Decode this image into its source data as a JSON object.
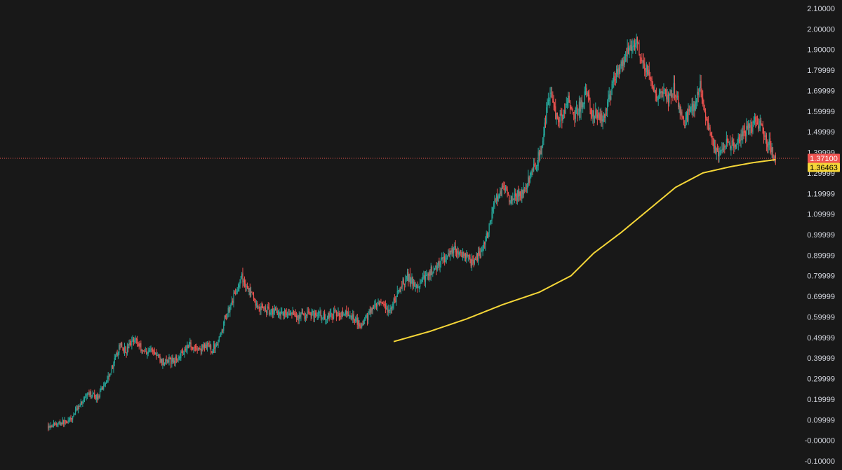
{
  "chart_data": {
    "type": "candlestick",
    "title": "",
    "xlabel": "",
    "ylabel": "",
    "ylim": [
      -0.1,
      2.1
    ],
    "grid": false,
    "background": "#181818",
    "colors": {
      "up": "#26a69a",
      "down": "#ef5350",
      "ma": "#f5d638",
      "axis_text": "#d1d4dc",
      "last_price_line": "#ef5350"
    },
    "y_ticks": [
      {
        "value": 2.1,
        "label": "2.10000"
      },
      {
        "value": 2.0,
        "label": "2.00000"
      },
      {
        "value": 1.9,
        "label": "1.90000"
      },
      {
        "value": 1.8,
        "label": "1.79999"
      },
      {
        "value": 1.7,
        "label": "1.69999"
      },
      {
        "value": 1.6,
        "label": "1.59999"
      },
      {
        "value": 1.5,
        "label": "1.49999"
      },
      {
        "value": 1.4,
        "label": "1.39999"
      },
      {
        "value": 1.3,
        "label": "1.29999"
      },
      {
        "value": 1.2,
        "label": "1.19999"
      },
      {
        "value": 1.1,
        "label": "1.09999"
      },
      {
        "value": 1.0,
        "label": "0.99999"
      },
      {
        "value": 0.9,
        "label": "0.89999"
      },
      {
        "value": 0.8,
        "label": "0.79999"
      },
      {
        "value": 0.7,
        "label": "0.69999"
      },
      {
        "value": 0.6,
        "label": "0.59999"
      },
      {
        "value": 0.5,
        "label": "0.49999"
      },
      {
        "value": 0.4,
        "label": "0.39999"
      },
      {
        "value": 0.3,
        "label": "0.29999"
      },
      {
        "value": 0.2,
        "label": "0.19999"
      },
      {
        "value": 0.1,
        "label": "0.09999"
      },
      {
        "value": 0.0,
        "label": "-0.00000"
      },
      {
        "value": -0.1,
        "label": "-0.10000"
      }
    ],
    "price_path": [
      [
        0,
        0.07
      ],
      [
        10,
        0.08
      ],
      [
        25,
        0.1
      ],
      [
        35,
        0.18
      ],
      [
        45,
        0.22
      ],
      [
        55,
        0.21
      ],
      [
        70,
        0.35
      ],
      [
        80,
        0.47
      ],
      [
        85,
        0.43
      ],
      [
        95,
        0.5
      ],
      [
        105,
        0.43
      ],
      [
        115,
        0.44
      ],
      [
        125,
        0.38
      ],
      [
        140,
        0.39
      ],
      [
        155,
        0.47
      ],
      [
        165,
        0.44
      ],
      [
        175,
        0.46
      ],
      [
        180,
        0.44
      ],
      [
        188,
        0.49
      ],
      [
        195,
        0.6
      ],
      [
        205,
        0.71
      ],
      [
        213,
        0.79
      ],
      [
        222,
        0.72
      ],
      [
        230,
        0.65
      ],
      [
        245,
        0.63
      ],
      [
        260,
        0.62
      ],
      [
        275,
        0.6
      ],
      [
        290,
        0.62
      ],
      [
        305,
        0.6
      ],
      [
        320,
        0.62
      ],
      [
        335,
        0.6
      ],
      [
        345,
        0.56
      ],
      [
        355,
        0.63
      ],
      [
        365,
        0.66
      ],
      [
        375,
        0.62
      ],
      [
        385,
        0.72
      ],
      [
        395,
        0.8
      ],
      [
        405,
        0.74
      ],
      [
        420,
        0.82
      ],
      [
        435,
        0.88
      ],
      [
        445,
        0.93
      ],
      [
        455,
        0.9
      ],
      [
        465,
        0.87
      ],
      [
        475,
        0.9
      ],
      [
        483,
        1.0
      ],
      [
        492,
        1.18
      ],
      [
        500,
        1.22
      ],
      [
        510,
        1.17
      ],
      [
        520,
        1.2
      ],
      [
        530,
        1.28
      ],
      [
        537,
        1.35
      ],
      [
        542,
        1.42
      ],
      [
        548,
        1.6
      ],
      [
        553,
        1.72
      ],
      [
        558,
        1.56
      ],
      [
        565,
        1.57
      ],
      [
        572,
        1.66
      ],
      [
        578,
        1.58
      ],
      [
        586,
        1.63
      ],
      [
        592,
        1.71
      ],
      [
        598,
        1.58
      ],
      [
        605,
        1.6
      ],
      [
        610,
        1.56
      ],
      [
        616,
        1.64
      ],
      [
        622,
        1.76
      ],
      [
        628,
        1.8
      ],
      [
        634,
        1.85
      ],
      [
        640,
        1.92
      ],
      [
        646,
        1.95
      ],
      [
        652,
        1.86
      ],
      [
        658,
        1.8
      ],
      [
        664,
        1.75
      ],
      [
        670,
        1.64
      ],
      [
        676,
        1.7
      ],
      [
        682,
        1.66
      ],
      [
        688,
        1.71
      ],
      [
        694,
        1.62
      ],
      [
        700,
        1.55
      ],
      [
        706,
        1.6
      ],
      [
        712,
        1.64
      ],
      [
        717,
        1.72
      ],
      [
        722,
        1.58
      ],
      [
        727,
        1.52
      ],
      [
        732,
        1.42
      ],
      [
        737,
        1.38
      ],
      [
        742,
        1.43
      ],
      [
        748,
        1.45
      ],
      [
        754,
        1.42
      ],
      [
        760,
        1.46
      ],
      [
        766,
        1.5
      ],
      [
        772,
        1.52
      ],
      [
        778,
        1.55
      ],
      [
        784,
        1.52
      ],
      [
        790,
        1.46
      ],
      [
        795,
        1.42
      ],
      [
        800,
        1.371
      ]
    ],
    "moving_average": [
      [
        380,
        0.48
      ],
      [
        420,
        0.53
      ],
      [
        460,
        0.59
      ],
      [
        500,
        0.66
      ],
      [
        540,
        0.72
      ],
      [
        575,
        0.8
      ],
      [
        600,
        0.91
      ],
      [
        630,
        1.01
      ],
      [
        660,
        1.12
      ],
      [
        690,
        1.23
      ],
      [
        720,
        1.3
      ],
      [
        750,
        1.33
      ],
      [
        775,
        1.35
      ],
      [
        800,
        1.36463
      ]
    ],
    "last_price": {
      "value": 1.371,
      "label": "1.37100",
      "color": "#ef5350"
    },
    "ma_value": {
      "value": 1.36463,
      "label": "1.36463",
      "color": "#f5d638"
    }
  }
}
